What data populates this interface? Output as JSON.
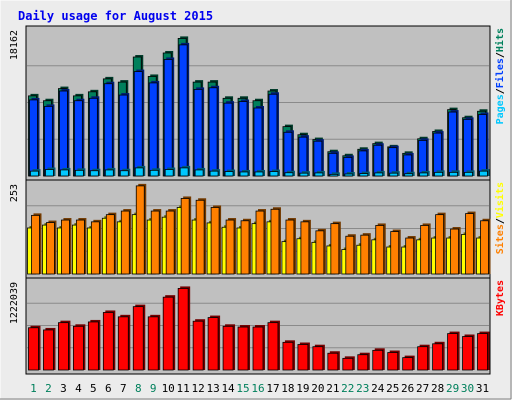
{
  "title": "Daily usage for August 2015",
  "colors": {
    "background": "#ececec",
    "panel": "#c0c0c0",
    "title": "#0000ee",
    "hits": "#00805c",
    "files": "#0040ff",
    "pages": "#00c8ff",
    "visits": "#ffff00",
    "sites": "#ff8000",
    "kbytes": "#ff0000",
    "weekend_day_label": "#00805c",
    "weekday_day_label": "#000000"
  },
  "chart_data": [
    {
      "type": "bar",
      "panel": "top",
      "y_max_label": "18162",
      "ylim": [
        0,
        18162
      ],
      "legend": [
        "Pages",
        "Files",
        "Hits"
      ],
      "legend_separators": [
        "/",
        "/"
      ],
      "categories": [
        "1",
        "2",
        "3",
        "4",
        "5",
        "6",
        "7",
        "8",
        "9",
        "10",
        "11",
        "12",
        "13",
        "14",
        "15",
        "16",
        "17",
        "18",
        "19",
        "20",
        "21",
        "22",
        "23",
        "24",
        "25",
        "26",
        "27",
        "28",
        "29",
        "30",
        "31"
      ],
      "weekend_days": [
        "1",
        "2",
        "8",
        "9",
        "15",
        "16",
        "22",
        "23",
        "29",
        "30"
      ],
      "series": [
        {
          "name": "Hits",
          "values": [
            9900,
            9300,
            10800,
            9900,
            10400,
            12000,
            11600,
            14700,
            12300,
            15200,
            17000,
            11600,
            11600,
            9600,
            9600,
            9300,
            10500,
            6100,
            5100,
            4500,
            3000,
            2500,
            3300,
            4000,
            3600,
            2800,
            4600,
            5500,
            8200,
            7200,
            8000
          ]
        },
        {
          "name": "Files",
          "values": [
            9400,
            8600,
            10500,
            9300,
            9600,
            11400,
            10000,
            12900,
            11500,
            14400,
            16200,
            10700,
            10900,
            9000,
            9200,
            8400,
            10100,
            5400,
            4800,
            4300,
            2800,
            2300,
            3100,
            3800,
            3500,
            2600,
            4400,
            5300,
            7900,
            7000,
            7600
          ]
        },
        {
          "name": "Pages",
          "values": [
            600,
            800,
            750,
            700,
            650,
            750,
            650,
            1000,
            700,
            800,
            1000,
            750,
            600,
            550,
            500,
            500,
            550,
            400,
            350,
            380,
            200,
            250,
            300,
            380,
            350,
            280,
            380,
            450,
            450,
            450,
            600
          ]
        }
      ]
    },
    {
      "type": "bar",
      "panel": "middle",
      "y_max_label": "253",
      "ylim": [
        0,
        253
      ],
      "legend": [
        "Sites",
        "Visits"
      ],
      "legend_separators": [
        "/"
      ],
      "categories": [
        "1",
        "2",
        "3",
        "4",
        "5",
        "6",
        "7",
        "8",
        "9",
        "10",
        "11",
        "12",
        "13",
        "14",
        "15",
        "16",
        "17",
        "18",
        "19",
        "20",
        "21",
        "22",
        "23",
        "24",
        "25",
        "26",
        "27",
        "28",
        "29",
        "30",
        "31"
      ],
      "series": [
        {
          "name": "Visits",
          "values": [
            128,
            136,
            128,
            136,
            128,
            155,
            145,
            165,
            150,
            158,
            185,
            150,
            142,
            130,
            128,
            140,
            145,
            90,
            98,
            88,
            78,
            68,
            80,
            95,
            75,
            75,
            95,
            100,
            100,
            110,
            100
          ]
        },
        {
          "name": "Sites",
          "values": [
            163,
            143,
            150,
            150,
            145,
            165,
            175,
            245,
            175,
            175,
            210,
            205,
            185,
            150,
            148,
            175,
            180,
            150,
            145,
            120,
            140,
            105,
            108,
            135,
            118,
            100,
            135,
            165,
            125,
            168,
            148
          ]
        }
      ]
    },
    {
      "type": "bar",
      "panel": "bottom",
      "y_max_label": "1222039",
      "ylim": [
        0,
        1222039
      ],
      "legend": [
        "KBytes"
      ],
      "categories": [
        "1",
        "2",
        "3",
        "4",
        "5",
        "6",
        "7",
        "8",
        "9",
        "10",
        "11",
        "12",
        "13",
        "14",
        "15",
        "16",
        "17",
        "18",
        "19",
        "20",
        "21",
        "22",
        "23",
        "24",
        "25",
        "26",
        "27",
        "28",
        "29",
        "30",
        "31"
      ],
      "series": [
        {
          "name": "KBytes",
          "values": [
            580000,
            550000,
            650000,
            600000,
            660000,
            790000,
            730000,
            870000,
            730000,
            1000000,
            1120000,
            670000,
            720000,
            600000,
            590000,
            590000,
            650000,
            380000,
            350000,
            320000,
            230000,
            160000,
            210000,
            270000,
            240000,
            170000,
            320000,
            360000,
            500000,
            460000,
            500000
          ]
        }
      ]
    }
  ]
}
